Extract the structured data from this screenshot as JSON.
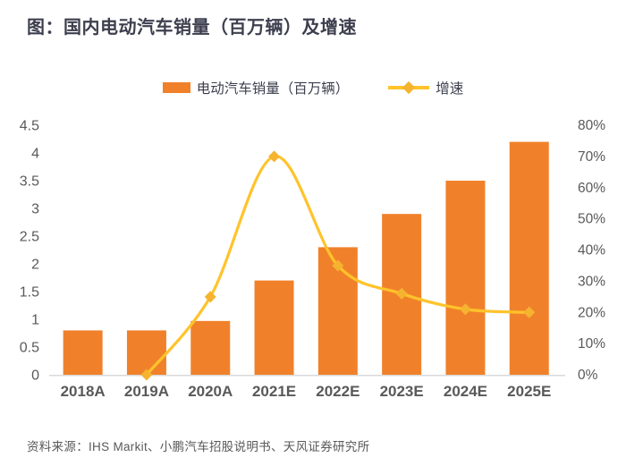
{
  "header": {
    "title": "图：国内电动汽车销量（百万辆）及增速"
  },
  "chart_data": {
    "type": "combo-bar-line",
    "title": "图：国内电动汽车销量（百万辆）及增速",
    "grid": false,
    "legend_position": "top-center",
    "categories": [
      "2018A",
      "2019A",
      "2020A",
      "2021E",
      "2022E",
      "2023E",
      "2024E",
      "2025E"
    ],
    "series": [
      {
        "name": "电动汽车销量（百万辆）",
        "type": "bar",
        "axis": "left",
        "color": "#f0812a",
        "values": [
          0.8,
          0.8,
          0.97,
          1.7,
          2.3,
          2.9,
          3.5,
          4.2
        ]
      },
      {
        "name": "增速",
        "type": "line",
        "axis": "right",
        "color": "#ffc32b",
        "marker": "diamond",
        "marker_color": "#f5b32f",
        "unit": "%",
        "values": [
          null,
          0,
          25,
          70,
          35,
          26,
          21,
          20
        ]
      }
    ],
    "left_axis": {
      "min": 0,
      "max": 4.5,
      "tick_labels": [
        "0",
        "0.5",
        "1",
        "1.5",
        "2",
        "2.5",
        "3",
        "3.5",
        "4",
        "4.5"
      ]
    },
    "right_axis": {
      "min": 0,
      "max": 80,
      "tick_labels": [
        "0%",
        "10%",
        "20%",
        "30%",
        "40%",
        "50%",
        "60%",
        "70%",
        "80%"
      ]
    }
  },
  "footer": {
    "source": "资料来源：IHS Markit、小鹏汽车招股说明书、天风证券研究所"
  },
  "colors": {
    "bar": "#f0812a",
    "line": "#ffc32b",
    "marker": "#f5b32f",
    "axis_line": "#d9d9d9",
    "tick_text": "#595959",
    "title_text": "#3d3f4e",
    "source_text": "#595959"
  }
}
